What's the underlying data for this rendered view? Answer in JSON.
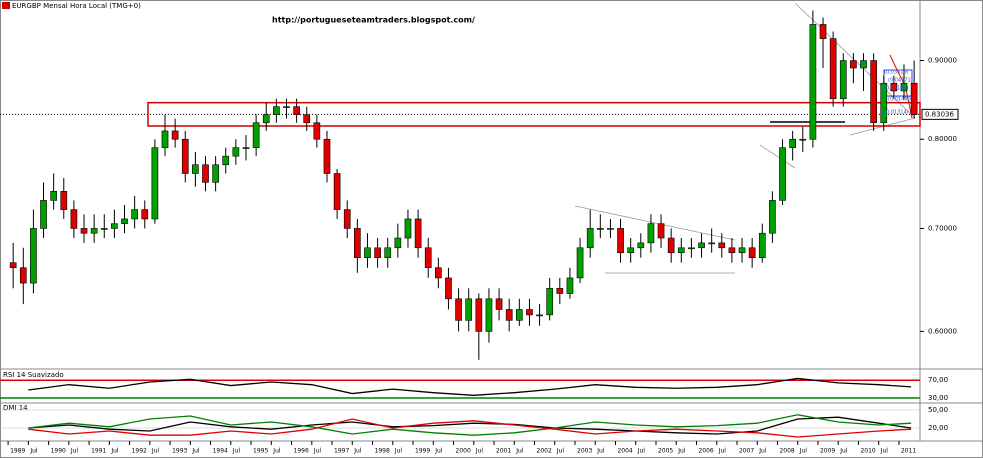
{
  "chart_data": [
    {
      "type": "candlestick",
      "title": "EURGBP Mensal Hora Local (TMG+0)",
      "annotation": "http://portugueseteamtraders.blogspot.com/",
      "log_scale": true,
      "up_color": "#00a000",
      "down_color": "#e00000",
      "x": [
        1989.125,
        1989.375,
        1989.625,
        1989.875,
        1990.125,
        1990.375,
        1990.625,
        1990.875,
        1991.125,
        1991.375,
        1991.625,
        1991.875,
        1992.125,
        1992.375,
        1992.625,
        1992.875,
        1993.125,
        1993.375,
        1993.625,
        1993.875,
        1994.125,
        1994.375,
        1994.625,
        1994.875,
        1995.125,
        1995.375,
        1995.625,
        1995.875,
        1996.125,
        1996.375,
        1996.625,
        1996.875,
        1997.125,
        1997.375,
        1997.625,
        1997.875,
        1998.125,
        1998.375,
        1998.625,
        1998.875,
        1999.125,
        1999.375,
        1999.625,
        1999.875,
        2000.125,
        2000.375,
        2000.625,
        2000.875,
        2001.125,
        2001.375,
        2001.625,
        2001.875,
        2002.125,
        2002.375,
        2002.625,
        2002.875,
        2003.125,
        2003.375,
        2003.625,
        2003.875,
        2004.125,
        2004.375,
        2004.625,
        2004.875,
        2005.125,
        2005.375,
        2005.625,
        2005.875,
        2006.125,
        2006.375,
        2006.625,
        2006.875,
        2007.125,
        2007.375,
        2007.625,
        2007.875,
        2008.125,
        2008.375,
        2008.625,
        2008.875,
        2009.125,
        2009.375,
        2009.625,
        2009.875,
        2010.125,
        2010.375,
        2010.625,
        2010.875,
        2011.125,
        2011.375
      ],
      "open": [
        0.665,
        0.66,
        0.645,
        0.7,
        0.73,
        0.74,
        0.72,
        0.7,
        0.695,
        0.7,
        0.7,
        0.705,
        0.71,
        0.72,
        0.71,
        0.79,
        0.81,
        0.8,
        0.76,
        0.77,
        0.75,
        0.77,
        0.78,
        0.79,
        0.79,
        0.82,
        0.83,
        0.84,
        0.84,
        0.83,
        0.82,
        0.8,
        0.76,
        0.72,
        0.7,
        0.67,
        0.68,
        0.67,
        0.68,
        0.69,
        0.71,
        0.68,
        0.66,
        0.65,
        0.63,
        0.61,
        0.63,
        0.6,
        0.63,
        0.62,
        0.61,
        0.62,
        0.615,
        0.615,
        0.64,
        0.635,
        0.65,
        0.68,
        0.7,
        0.7,
        0.7,
        0.675,
        0.68,
        0.685,
        0.705,
        0.69,
        0.675,
        0.68,
        0.68,
        0.685,
        0.685,
        0.68,
        0.675,
        0.68,
        0.67,
        0.695,
        0.73,
        0.79,
        0.8,
        0.8,
        0.95,
        0.93,
        0.85,
        0.9,
        0.89,
        0.9,
        0.82,
        0.87,
        0.86,
        0.87
      ],
      "high": [
        0.685,
        0.68,
        0.72,
        0.75,
        0.76,
        0.755,
        0.73,
        0.715,
        0.715,
        0.715,
        0.72,
        0.725,
        0.735,
        0.73,
        0.8,
        0.83,
        0.825,
        0.81,
        0.785,
        0.78,
        0.78,
        0.79,
        0.8,
        0.805,
        0.83,
        0.845,
        0.85,
        0.85,
        0.85,
        0.84,
        0.83,
        0.81,
        0.765,
        0.73,
        0.71,
        0.695,
        0.69,
        0.69,
        0.705,
        0.72,
        0.72,
        0.69,
        0.67,
        0.66,
        0.64,
        0.64,
        0.635,
        0.64,
        0.64,
        0.63,
        0.63,
        0.63,
        0.625,
        0.65,
        0.65,
        0.66,
        0.69,
        0.72,
        0.715,
        0.71,
        0.71,
        0.69,
        0.695,
        0.715,
        0.715,
        0.7,
        0.69,
        0.69,
        0.695,
        0.7,
        0.695,
        0.69,
        0.69,
        0.69,
        0.705,
        0.74,
        0.8,
        0.81,
        0.815,
        0.97,
        0.96,
        0.94,
        0.91,
        0.91,
        0.91,
        0.91,
        0.88,
        0.88,
        0.895,
        0.9
      ],
      "low": [
        0.64,
        0.625,
        0.635,
        0.69,
        0.72,
        0.71,
        0.69,
        0.685,
        0.685,
        0.69,
        0.69,
        0.695,
        0.7,
        0.7,
        0.705,
        0.78,
        0.79,
        0.75,
        0.745,
        0.74,
        0.74,
        0.76,
        0.77,
        0.775,
        0.78,
        0.81,
        0.82,
        0.825,
        0.82,
        0.81,
        0.79,
        0.75,
        0.71,
        0.69,
        0.655,
        0.66,
        0.66,
        0.66,
        0.67,
        0.68,
        0.67,
        0.65,
        0.64,
        0.62,
        0.6,
        0.6,
        0.575,
        0.59,
        0.61,
        0.6,
        0.605,
        0.605,
        0.605,
        0.61,
        0.625,
        0.63,
        0.645,
        0.67,
        0.69,
        0.69,
        0.665,
        0.665,
        0.67,
        0.675,
        0.68,
        0.665,
        0.665,
        0.67,
        0.67,
        0.675,
        0.67,
        0.665,
        0.665,
        0.66,
        0.665,
        0.685,
        0.725,
        0.775,
        0.785,
        0.79,
        0.89,
        0.84,
        0.84,
        0.87,
        0.86,
        0.81,
        0.81,
        0.85,
        0.85,
        0.825
      ],
      "close": [
        0.66,
        0.645,
        0.7,
        0.73,
        0.74,
        0.72,
        0.7,
        0.695,
        0.7,
        0.7,
        0.705,
        0.71,
        0.72,
        0.71,
        0.79,
        0.81,
        0.8,
        0.76,
        0.77,
        0.75,
        0.77,
        0.78,
        0.79,
        0.79,
        0.82,
        0.83,
        0.84,
        0.84,
        0.83,
        0.82,
        0.8,
        0.76,
        0.72,
        0.7,
        0.67,
        0.68,
        0.67,
        0.68,
        0.69,
        0.71,
        0.68,
        0.66,
        0.65,
        0.63,
        0.61,
        0.63,
        0.6,
        0.63,
        0.62,
        0.61,
        0.62,
        0.615,
        0.615,
        0.64,
        0.635,
        0.65,
        0.68,
        0.7,
        0.7,
        0.7,
        0.675,
        0.68,
        0.685,
        0.705,
        0.69,
        0.675,
        0.68,
        0.68,
        0.685,
        0.685,
        0.68,
        0.675,
        0.68,
        0.67,
        0.695,
        0.73,
        0.79,
        0.8,
        0.8,
        0.95,
        0.93,
        0.85,
        0.9,
        0.89,
        0.9,
        0.82,
        0.87,
        0.86,
        0.87,
        0.83
      ],
      "xlim": [
        1988.8,
        2011.52
      ],
      "xticks": [
        1989,
        {
          "value": 1989.5,
          "label": "Jul"
        },
        1990,
        {
          "value": 1990.5,
          "label": "Jul"
        },
        1991,
        {
          "value": 1991.5,
          "label": "Jul"
        },
        1992,
        {
          "value": 1992.5,
          "label": "Jul"
        },
        1993,
        {
          "value": 1993.5,
          "label": "Jul"
        },
        1994,
        {
          "value": 1994.5,
          "label": "Jul"
        },
        1995,
        {
          "value": 1995.5,
          "label": "Jul"
        },
        1996,
        {
          "value": 1996.5,
          "label": "Jul"
        },
        1997,
        {
          "value": 1997.5,
          "label": "Jul"
        },
        1998,
        {
          "value": 1998.5,
          "label": "Jul"
        },
        1999,
        {
          "value": 1999.5,
          "label": "Jul"
        },
        2000,
        {
          "value": 2000.5,
          "label": "Jul"
        },
        2001,
        {
          "value": 2001.5,
          "label": "Jul"
        },
        2002,
        {
          "value": 2002.5,
          "label": "Jul"
        },
        2003,
        {
          "value": 2003.5,
          "label": "Jul"
        },
        2004,
        {
          "value": 2004.5,
          "label": "Jul"
        },
        2005,
        {
          "value": 2005.5,
          "label": "Jul"
        },
        2006,
        {
          "value": 2006.5,
          "label": "Jul"
        },
        2007,
        {
          "value": 2007.5,
          "label": "Jul"
        },
        2008,
        {
          "value": 2008.5,
          "label": "Jul"
        },
        2009,
        {
          "value": 2009.5,
          "label": "Jul"
        },
        2010,
        {
          "value": 2010.5,
          "label": "Jul"
        },
        2011
      ],
      "ylim": [
        0.568,
        0.981
      ],
      "yticks": [
        {
          "value": 0.6,
          "label": "0.60000"
        },
        {
          "value": 0.7,
          "label": "0.70000"
        },
        {
          "value": 0.8,
          "label": "0.80000"
        },
        {
          "value": 0.9,
          "label": "0.90000"
        }
      ],
      "last_price": {
        "value": 0.83036,
        "label": "0.83036"
      },
      "zone": [
        0.816,
        0.845
      ],
      "fib_labels": [
        "(0,03619)",
        "(0,04771)",
        "(0,03104)",
        "(0,01480)",
        "(0,01314)"
      ]
    },
    {
      "type": "line",
      "title": "RSI 14 Suavizado",
      "x": [
        1989.5,
        1990.5,
        1991.5,
        1992.5,
        1993.5,
        1994.5,
        1995.5,
        1996.5,
        1997.5,
        1998.5,
        1999.5,
        2000.5,
        2001.5,
        2002.5,
        2003.5,
        2004.5,
        2005.5,
        2006.5,
        2007.5,
        2008.5,
        2009.5,
        2010.5,
        2011.3
      ],
      "series": [
        {
          "color": "#000000",
          "values": [
            48,
            60,
            52,
            66,
            72,
            58,
            66,
            60,
            40,
            50,
            42,
            36,
            42,
            50,
            60,
            54,
            52,
            54,
            60,
            74,
            64,
            60,
            55
          ]
        }
      ],
      "xlim": [
        1988.8,
        2011.52
      ],
      "ylim": [
        21,
        93
      ],
      "yticks": [
        {
          "value": 30,
          "label": "30,00"
        },
        {
          "value": 70,
          "label": "70,00"
        }
      ],
      "level_colors": [
        "#008000",
        "#e00000"
      ]
    },
    {
      "type": "line",
      "title": "DMI 14",
      "x": [
        1989.5,
        1990.5,
        1991.5,
        1992.5,
        1993.5,
        1994.5,
        1995.5,
        1996.5,
        1997.5,
        1998.5,
        1999.5,
        2000.5,
        2001.5,
        2002.5,
        2003.5,
        2004.5,
        2005.5,
        2006.5,
        2007.5,
        2008.5,
        2009.5,
        2010.5,
        2011.3
      ],
      "series": [
        {
          "color": "#000000",
          "values": [
            20,
            25,
            18,
            15,
            30,
            22,
            18,
            25,
            30,
            22,
            24,
            28,
            26,
            20,
            18,
            15,
            12,
            10,
            15,
            35,
            38,
            28,
            20
          ]
        },
        {
          "color": "#008000",
          "values": [
            20,
            28,
            22,
            35,
            40,
            25,
            30,
            22,
            10,
            18,
            12,
            8,
            12,
            20,
            30,
            25,
            22,
            24,
            28,
            42,
            30,
            25,
            28
          ]
        },
        {
          "color": "#e00000",
          "values": [
            18,
            10,
            15,
            8,
            8,
            15,
            10,
            18,
            35,
            20,
            28,
            32,
            25,
            18,
            10,
            15,
            18,
            15,
            12,
            5,
            10,
            15,
            18
          ]
        }
      ],
      "xlim": [
        1988.8,
        2011.52
      ],
      "ylim": [
        0,
        60
      ],
      "yticks": [
        {
          "value": 20,
          "label": "20,00"
        },
        {
          "value": 50,
          "label": "50,00"
        }
      ]
    }
  ]
}
